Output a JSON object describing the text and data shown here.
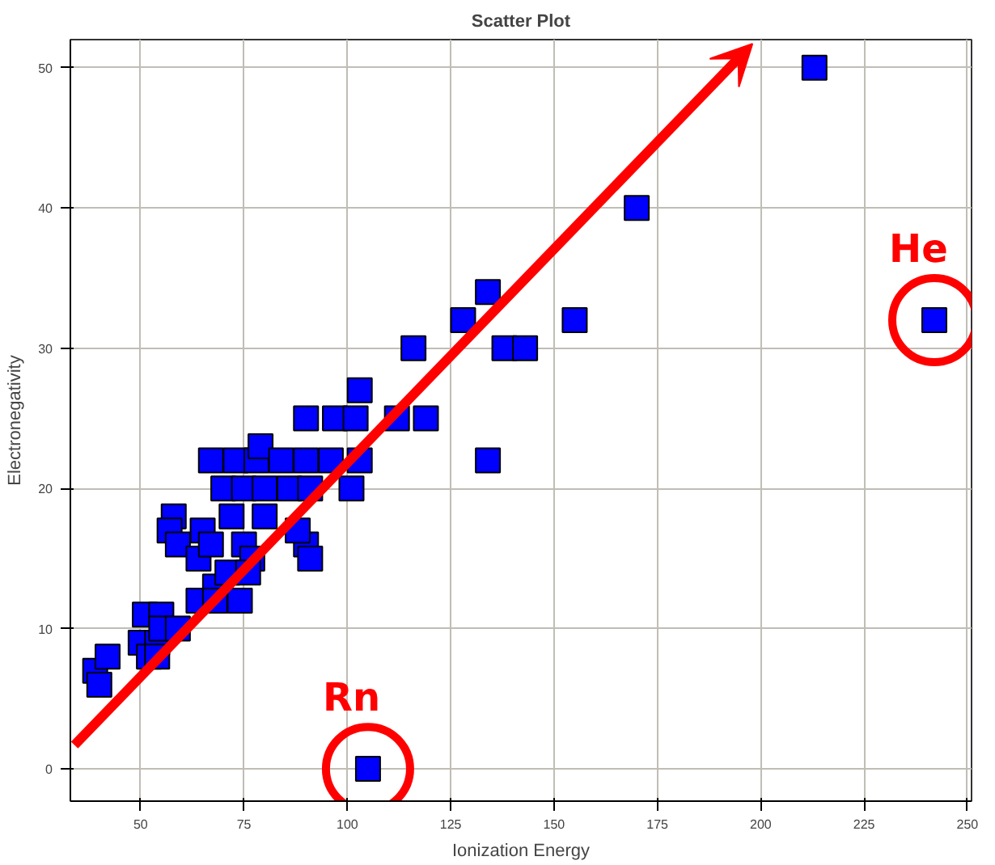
{
  "chart_data": {
    "type": "scatter",
    "title": "Scatter Plot",
    "xlabel": "Ionization Energy",
    "ylabel": "Electronegativity",
    "xlim": [
      33,
      251
    ],
    "ylim": [
      -2.3,
      52
    ],
    "xticks": [
      50,
      75,
      100,
      125,
      150,
      175,
      200,
      225,
      250
    ],
    "yticks": [
      0,
      10,
      20,
      30,
      40,
      50
    ],
    "grid": true,
    "marker": "square",
    "annotations": [
      {
        "text": "He",
        "x": 242,
        "y": 32
      },
      {
        "text": "Rn",
        "x": 105,
        "y": 0
      }
    ],
    "series": [
      {
        "color": "#0000ff",
        "x": [
          213,
          170,
          242,
          128,
          134,
          116,
          138,
          143,
          155,
          134,
          103,
          97,
          102,
          112,
          119,
          90,
          105,
          39,
          40,
          42,
          51,
          55,
          50,
          54,
          55,
          59,
          52,
          54,
          58,
          57,
          59,
          64,
          65,
          67,
          64,
          68,
          68,
          74,
          71,
          67,
          73,
          78,
          79,
          84,
          90,
          96,
          103,
          70,
          75,
          80,
          86,
          91,
          101,
          72,
          80,
          75,
          77,
          90,
          91,
          88,
          76
        ],
        "values": [
          50,
          40,
          32,
          32,
          34,
          30,
          30,
          30,
          32,
          22,
          27,
          25,
          25,
          25,
          25,
          25,
          0,
          7,
          6,
          8,
          11,
          11,
          9,
          9,
          10,
          10,
          8,
          8,
          18,
          17,
          16,
          15,
          17,
          16,
          12,
          13,
          12,
          12,
          14,
          22,
          22,
          22,
          23,
          22,
          22,
          22,
          22,
          20,
          20,
          20,
          20,
          20,
          20,
          18,
          18,
          16,
          15,
          16,
          15,
          17,
          14
        ]
      }
    ]
  }
}
